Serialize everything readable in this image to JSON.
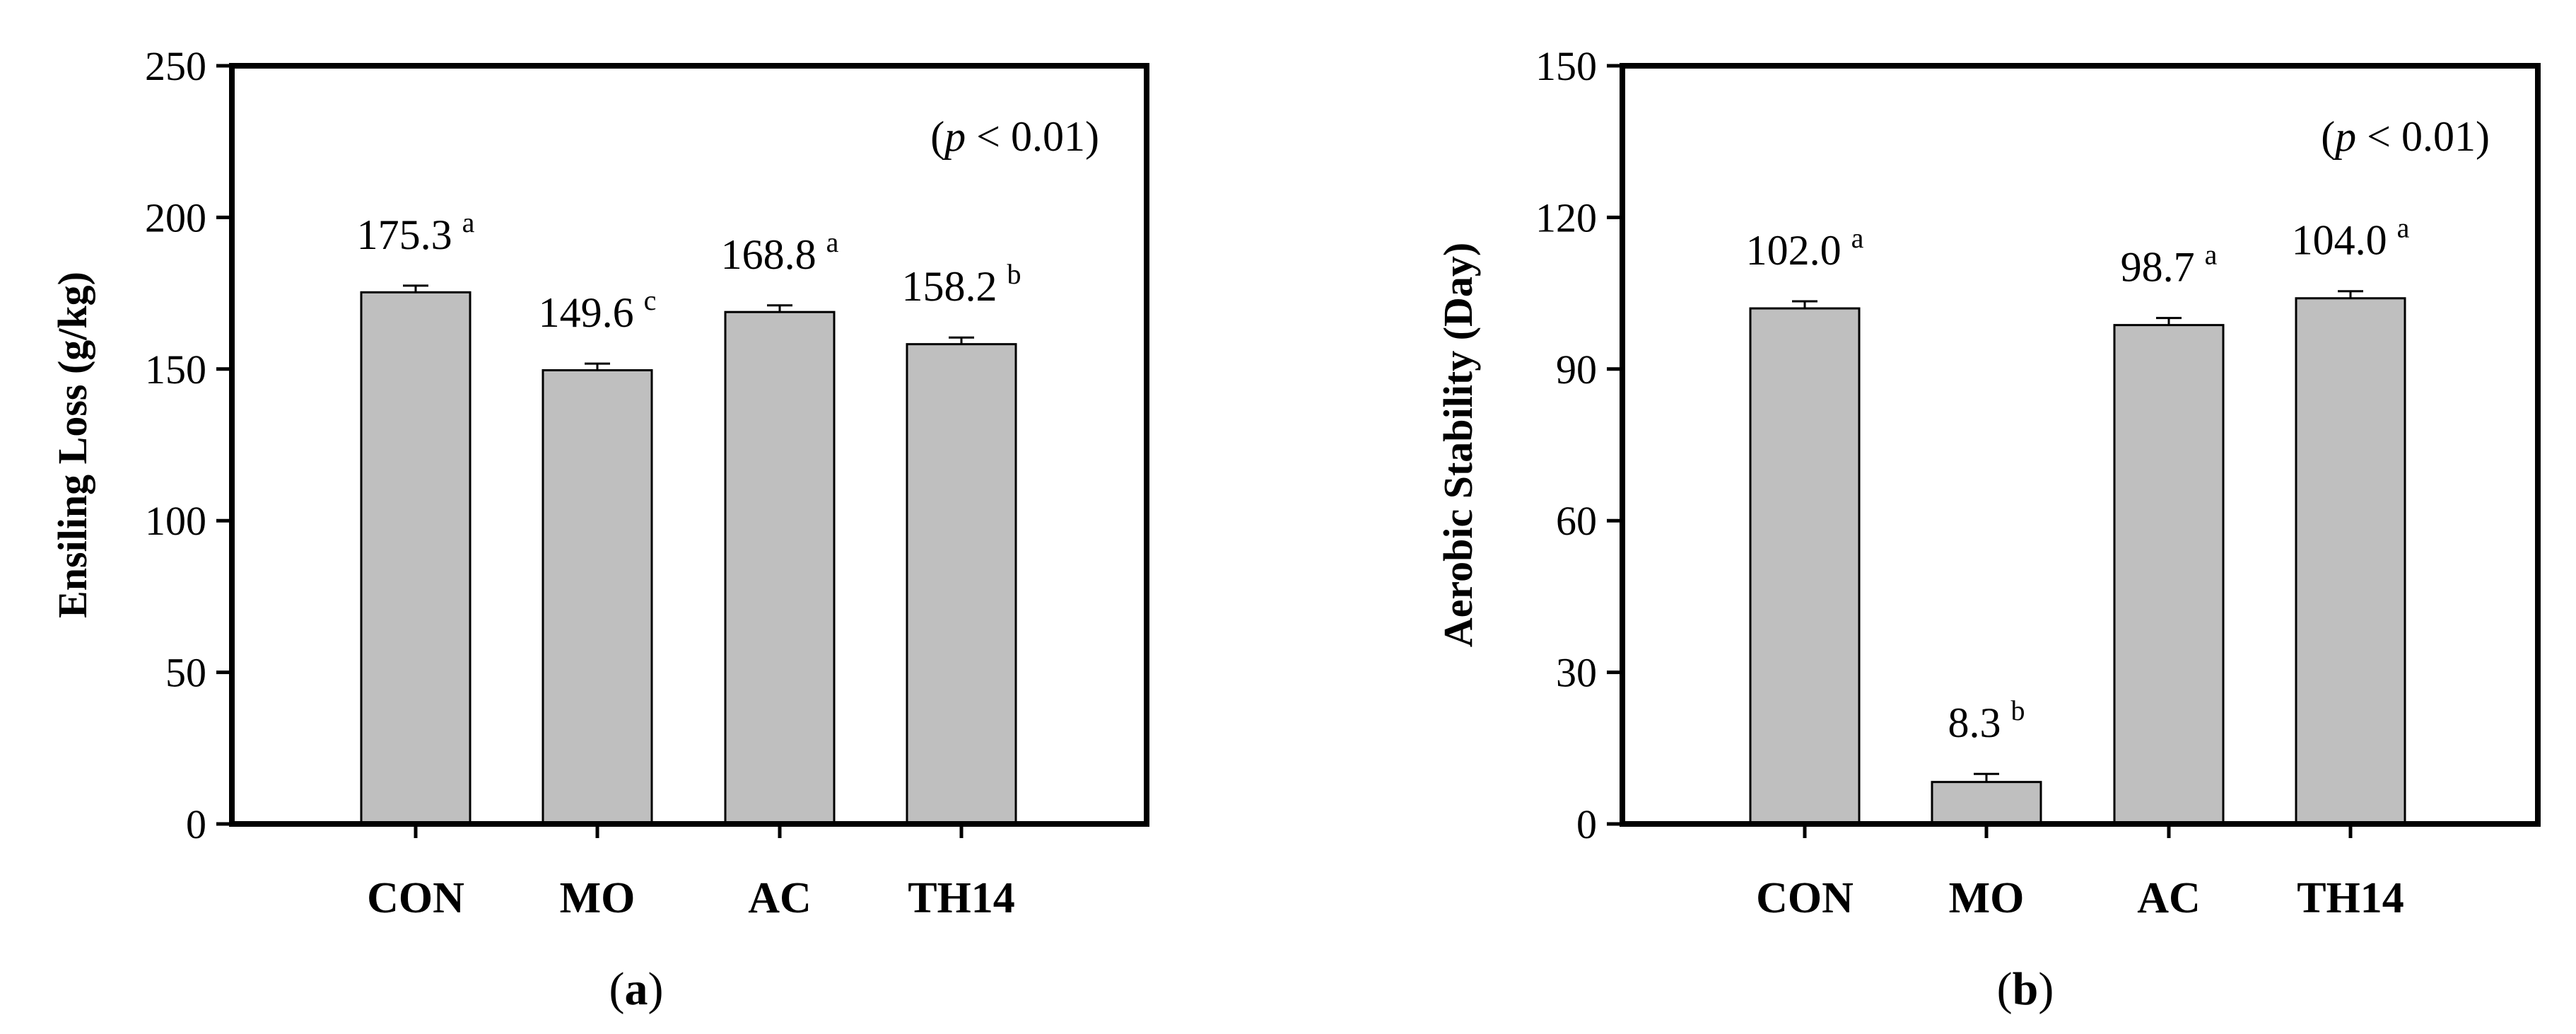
{
  "chart_data": [
    {
      "type": "bar",
      "panel": "a",
      "categories": [
        "CON",
        "MO",
        "AC",
        "TH14"
      ],
      "values": [
        175.3,
        149.6,
        168.8,
        158.2
      ],
      "errors": [
        2.2,
        2.2,
        2.2,
        2.2
      ],
      "letters": [
        "a",
        "c",
        "a",
        "b"
      ],
      "value_labels": [
        "175.3",
        "149.6",
        "168.8",
        "158.2"
      ],
      "ylabel": "Ensiling Loss (g/kg)",
      "ylim": [
        0,
        250
      ],
      "yticks": [
        0,
        50,
        100,
        150,
        200,
        250
      ],
      "ytick_labels": [
        "0",
        "50",
        "100",
        "150",
        "200",
        "250"
      ],
      "p_value": {
        "open": "(",
        "p": "p",
        "rest": " < 0.01)"
      },
      "panel_label": {
        "open": "(",
        "letter": "a",
        "close": ")"
      },
      "bar_color": "#bfbfbf"
    },
    {
      "type": "bar",
      "panel": "b",
      "categories": [
        "CON",
        "MO",
        "AC",
        "TH14"
      ],
      "values": [
        102.0,
        8.3,
        98.7,
        104.0
      ],
      "errors": [
        1.4,
        1.6,
        1.4,
        1.4
      ],
      "letters": [
        "a",
        "b",
        "a",
        "a"
      ],
      "value_labels": [
        "102.0",
        "8.3",
        "98.7",
        "104.0"
      ],
      "ylabel": "Aerobic Stability (Day)",
      "ylim": [
        0,
        150
      ],
      "yticks": [
        0,
        30,
        60,
        90,
        120,
        150
      ],
      "ytick_labels": [
        "0",
        "30",
        "60",
        "90",
        "120",
        "150"
      ],
      "p_value": {
        "open": "(",
        "p": "p",
        "rest": " < 0.01)"
      },
      "panel_label": {
        "open": "(",
        "letter": "b",
        "close": ")"
      },
      "bar_color": "#bfbfbf"
    }
  ]
}
